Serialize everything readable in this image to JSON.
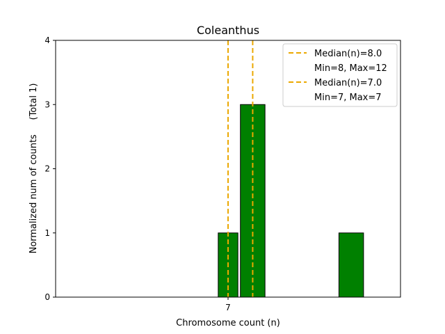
{
  "chart_data": {
    "type": "bar",
    "title": "Coleanthus",
    "xlabel": "Chromosome count (n)",
    "ylabel": "Normalized num of counts     (Total 1)",
    "xlim": [
      0,
      14
    ],
    "ylim": [
      0,
      4
    ],
    "x_ticks": [
      {
        "value": 7,
        "label": "7"
      }
    ],
    "y_ticks": [
      0,
      1,
      2,
      3,
      4
    ],
    "grid": false,
    "bars": [
      {
        "x_start": 6.6,
        "x_end": 7.4,
        "value": 1
      },
      {
        "x_start": 7.5,
        "x_end": 8.5,
        "value": 3
      },
      {
        "x_start": 11.5,
        "x_end": 12.5,
        "value": 1
      }
    ],
    "median_lines": [
      {
        "x": 8.0,
        "label": "Median(n)=8.0",
        "range_label": "Min=8, Max=12"
      },
      {
        "x": 7.0,
        "label": "Median(n)=7.0",
        "range_label": "Min=7, Max=7"
      }
    ],
    "legend_position": "top-right",
    "colors": {
      "bar_fill": "#008000",
      "bar_edge": "#000000",
      "median": "#EBA800"
    }
  }
}
